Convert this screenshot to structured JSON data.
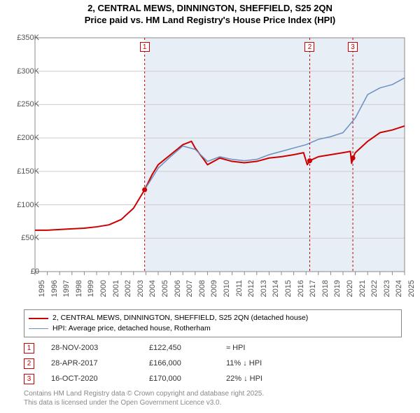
{
  "title_line1": "2, CENTRAL MEWS, DINNINGTON, SHEFFIELD, S25 2QN",
  "title_line2": "Price paid vs. HM Land Registry's House Price Index (HPI)",
  "chart": {
    "type": "line",
    "background_color": "#ffffff",
    "shaded_color": "#e8eef5",
    "grid_color": "#cccccc",
    "axis_color": "#888888",
    "tick_color": "#888888",
    "label_color": "#555555",
    "label_fontsize": 11,
    "ylim": [
      0,
      350000
    ],
    "ytick_step": 50000,
    "yticks": [
      "£0",
      "£50K",
      "£100K",
      "£150K",
      "£200K",
      "£250K",
      "£300K",
      "£350K"
    ],
    "xlim": [
      1995,
      2025
    ],
    "xticks": [
      1995,
      1996,
      1997,
      1998,
      1999,
      2000,
      2001,
      2002,
      2003,
      2004,
      2005,
      2006,
      2007,
      2008,
      2009,
      2010,
      2011,
      2012,
      2013,
      2014,
      2015,
      2016,
      2017,
      2018,
      2019,
      2020,
      2021,
      2022,
      2023,
      2024,
      2025
    ],
    "shaded_start_year": 2003.9,
    "marker_line_color": "#cc0000",
    "marker_line_dash": "3,3",
    "markers": [
      {
        "n": "1",
        "year": 2003.9,
        "price": 122450
      },
      {
        "n": "2",
        "year": 2017.3,
        "price": 166000
      },
      {
        "n": "3",
        "year": 2020.8,
        "price": 170000
      }
    ],
    "series": [
      {
        "name": "price_paid",
        "color": "#cc0000",
        "width": 2,
        "points": [
          [
            1995,
            62000
          ],
          [
            1996,
            62000
          ],
          [
            1997,
            63000
          ],
          [
            1998,
            64000
          ],
          [
            1999,
            65000
          ],
          [
            2000,
            67000
          ],
          [
            2001,
            70000
          ],
          [
            2002,
            78000
          ],
          [
            2003,
            95000
          ],
          [
            2003.9,
            122450
          ],
          [
            2004.5,
            145000
          ],
          [
            2005,
            160000
          ],
          [
            2006,
            175000
          ],
          [
            2007,
            190000
          ],
          [
            2007.7,
            195000
          ],
          [
            2008,
            185000
          ],
          [
            2008.7,
            168000
          ],
          [
            2009,
            160000
          ],
          [
            2010,
            170000
          ],
          [
            2011,
            165000
          ],
          [
            2012,
            163000
          ],
          [
            2013,
            165000
          ],
          [
            2014,
            170000
          ],
          [
            2015,
            172000
          ],
          [
            2016,
            175000
          ],
          [
            2016.8,
            178000
          ],
          [
            2017.1,
            160000
          ],
          [
            2017.3,
            166000
          ],
          [
            2018,
            172000
          ],
          [
            2019,
            175000
          ],
          [
            2020,
            178000
          ],
          [
            2020.6,
            180000
          ],
          [
            2020.7,
            162000
          ],
          [
            2020.8,
            170000
          ],
          [
            2021,
            178000
          ],
          [
            2022,
            195000
          ],
          [
            2023,
            208000
          ],
          [
            2024,
            212000
          ],
          [
            2025,
            218000
          ]
        ]
      },
      {
        "name": "hpi",
        "color": "#6a8fc0",
        "width": 1.5,
        "start_year": 2003.9,
        "points": [
          [
            2003.9,
            122450
          ],
          [
            2005,
            155000
          ],
          [
            2006,
            172000
          ],
          [
            2007,
            188000
          ],
          [
            2008,
            183000
          ],
          [
            2009,
            165000
          ],
          [
            2010,
            172000
          ],
          [
            2011,
            168000
          ],
          [
            2012,
            166000
          ],
          [
            2013,
            168000
          ],
          [
            2014,
            175000
          ],
          [
            2015,
            180000
          ],
          [
            2016,
            185000
          ],
          [
            2017,
            190000
          ],
          [
            2018,
            198000
          ],
          [
            2019,
            202000
          ],
          [
            2020,
            208000
          ],
          [
            2021,
            230000
          ],
          [
            2022,
            265000
          ],
          [
            2023,
            275000
          ],
          [
            2024,
            280000
          ],
          [
            2025,
            290000
          ]
        ]
      }
    ]
  },
  "legend": {
    "items": [
      {
        "color": "#cc0000",
        "width": 2,
        "label": "2, CENTRAL MEWS, DINNINGTON, SHEFFIELD, S25 2QN (detached house)"
      },
      {
        "color": "#6a8fc0",
        "width": 1.5,
        "label": "HPI: Average price, detached house, Rotherham"
      }
    ]
  },
  "sales": [
    {
      "n": "1",
      "date": "28-NOV-2003",
      "price": "£122,450",
      "delta": "≈ HPI"
    },
    {
      "n": "2",
      "date": "28-APR-2017",
      "price": "£166,000",
      "delta": "11% ↓ HPI"
    },
    {
      "n": "3",
      "date": "16-OCT-2020",
      "price": "£170,000",
      "delta": "22% ↓ HPI"
    }
  ],
  "sale_marker_border": "#cc0000",
  "footer_line1": "Contains HM Land Registry data © Crown copyright and database right 2025.",
  "footer_line2": "This data is licensed under the Open Government Licence v3.0."
}
